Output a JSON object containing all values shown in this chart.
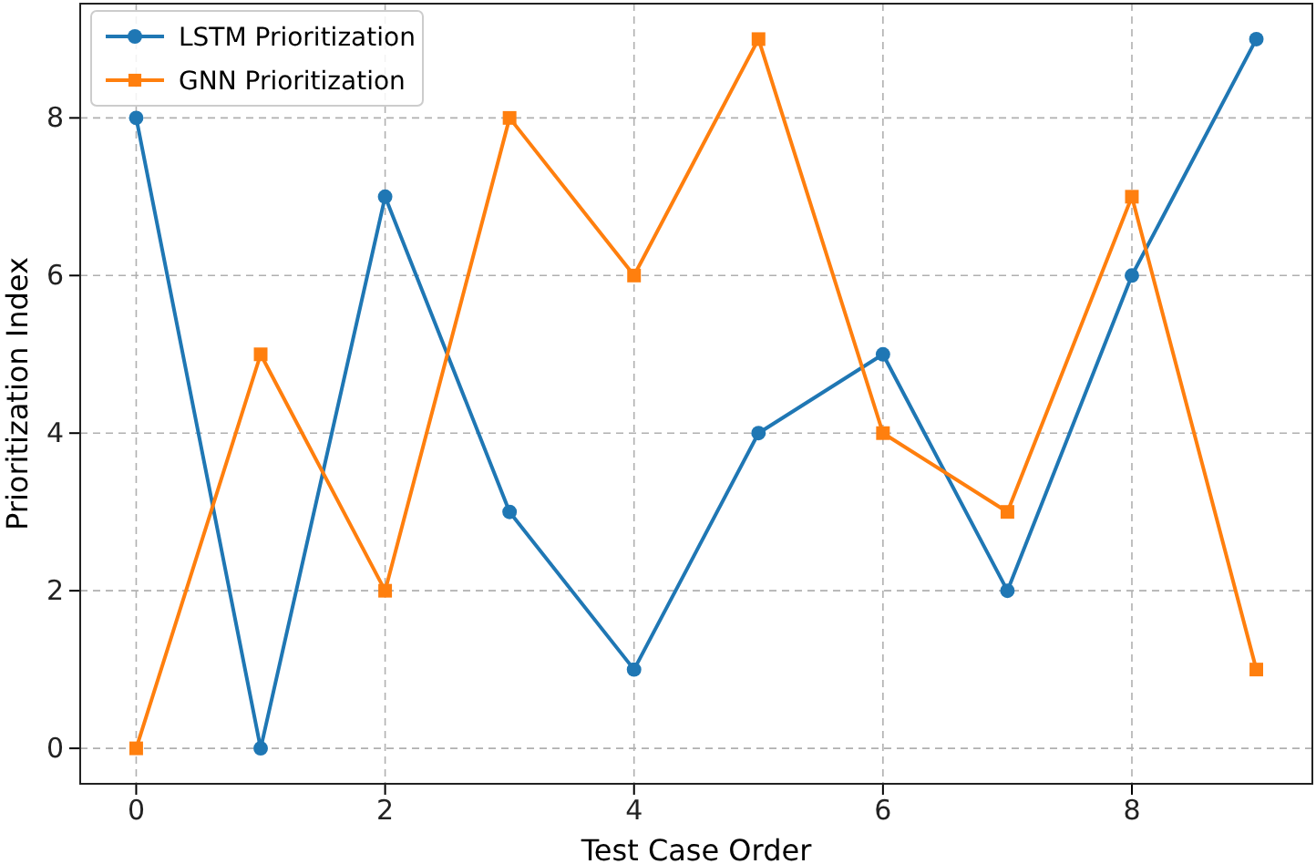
{
  "chart_data": {
    "type": "line",
    "xlabel": "Test Case Order",
    "ylabel": "Prioritization Index",
    "x": [
      0,
      1,
      2,
      3,
      4,
      5,
      6,
      7,
      8,
      9
    ],
    "series": [
      {
        "name": "LSTM Prioritization",
        "color": "#1f77b4",
        "marker": "circle",
        "values": [
          8,
          0,
          7,
          3,
          1,
          4,
          5,
          2,
          6,
          9
        ]
      },
      {
        "name": "GNN Prioritization",
        "color": "#ff7f0e",
        "marker": "square",
        "values": [
          0,
          5,
          2,
          8,
          6,
          9,
          4,
          3,
          7,
          1
        ]
      }
    ],
    "xlim": [
      -0.45,
      9.45
    ],
    "ylim": [
      -0.45,
      9.45
    ],
    "xticks": [
      0,
      2,
      4,
      6,
      8
    ],
    "yticks": [
      0,
      2,
      4,
      6,
      8
    ],
    "grid": true,
    "legend": "top left",
    "line_style": "solid"
  }
}
